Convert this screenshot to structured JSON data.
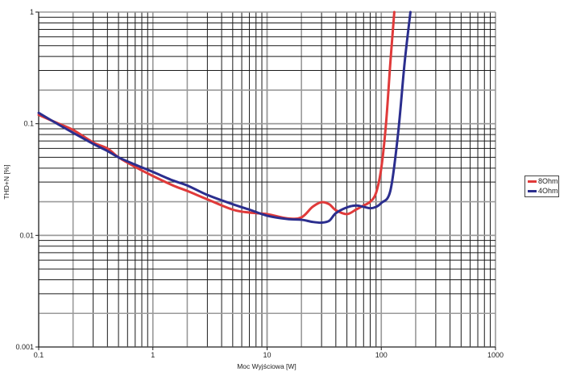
{
  "chart_data": {
    "type": "line",
    "title": "",
    "xlabel": "Moc Wyjściowa [W]",
    "ylabel": "THD+N [%]",
    "xscale": "log",
    "yscale": "log",
    "xlim": [
      0.1,
      1000
    ],
    "ylim": [
      0.001,
      1
    ],
    "grid": true,
    "legend_position": "right",
    "x_ticks": [
      "0.1",
      "1",
      "10",
      "100",
      "1000"
    ],
    "y_ticks": [
      "0.001",
      "0.01",
      "0.1",
      "1"
    ],
    "series": [
      {
        "name": "8Ohm",
        "color": "#e03a3a",
        "x": [
          0.1,
          0.15,
          0.2,
          0.3,
          0.4,
          0.5,
          0.7,
          1,
          1.5,
          2,
          3,
          5,
          7,
          10,
          15,
          20,
          25,
          30,
          35,
          40,
          50,
          60,
          70,
          80,
          90,
          100,
          110,
          120,
          130
        ],
        "y": [
          0.12,
          0.1,
          0.088,
          0.068,
          0.06,
          0.05,
          0.041,
          0.034,
          0.028,
          0.025,
          0.021,
          0.017,
          0.016,
          0.0155,
          0.0142,
          0.0145,
          0.018,
          0.0198,
          0.019,
          0.0168,
          0.0155,
          0.017,
          0.0185,
          0.02,
          0.024,
          0.04,
          0.1,
          0.35,
          1.0
        ]
      },
      {
        "name": "4Ohm",
        "color": "#2b2e8e",
        "x": [
          0.1,
          0.15,
          0.2,
          0.3,
          0.4,
          0.5,
          0.7,
          1,
          1.5,
          2,
          3,
          5,
          7,
          10,
          15,
          20,
          25,
          30,
          35,
          40,
          50,
          60,
          70,
          80,
          90,
          100,
          120,
          140,
          160,
          180
        ],
        "y": [
          0.125,
          0.098,
          0.083,
          0.066,
          0.057,
          0.05,
          0.043,
          0.037,
          0.031,
          0.028,
          0.023,
          0.019,
          0.017,
          0.015,
          0.014,
          0.0138,
          0.0132,
          0.013,
          0.0135,
          0.0158,
          0.0178,
          0.0185,
          0.018,
          0.0175,
          0.018,
          0.0195,
          0.025,
          0.08,
          0.35,
          1.0
        ]
      }
    ]
  },
  "legend": {
    "items": [
      {
        "label": "8Ohm",
        "color": "#e03a3a"
      },
      {
        "label": "4Ohm",
        "color": "#2b2e8e"
      }
    ]
  }
}
